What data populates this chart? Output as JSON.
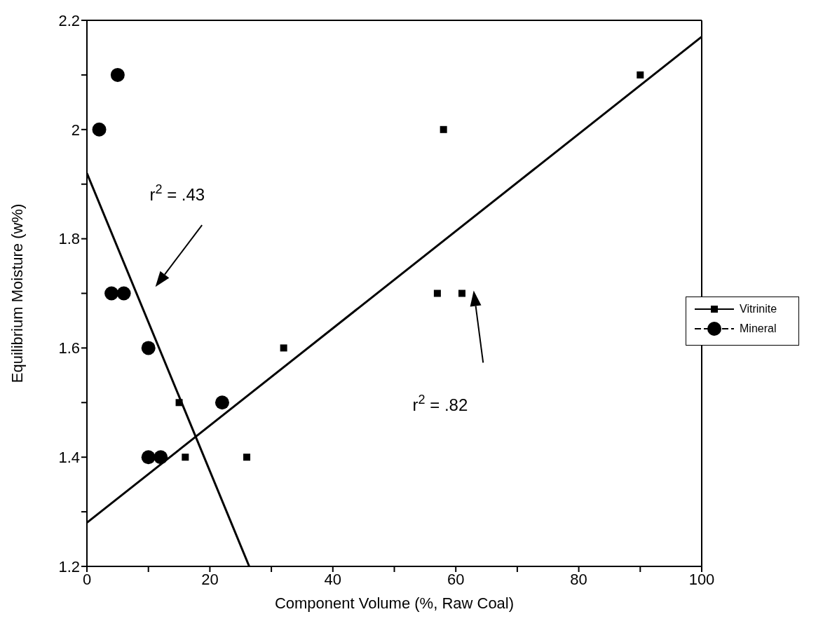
{
  "chart_data": {
    "type": "scatter",
    "xlabel": "Component Volume (%, Raw Coal)",
    "ylabel": "Equilibrium Moisture (w%)",
    "xlim": [
      0,
      100
    ],
    "xticks": [
      0,
      {
        "value": 10,
        "label": null
      },
      20,
      {
        "value": 30,
        "label": null
      },
      40,
      {
        "value": 50,
        "label": null
      },
      60,
      {
        "value": 70,
        "label": null
      },
      80,
      {
        "value": 90,
        "label": null
      },
      100
    ],
    "ylim": [
      1.2,
      2.2
    ],
    "yticks": [
      1.2,
      {
        "value": 1.3,
        "label": null
      },
      1.4,
      {
        "value": 1.5,
        "label": null
      },
      1.6,
      {
        "value": 1.7,
        "label": null
      },
      1.8,
      {
        "value": 1.9,
        "label": null
      },
      2,
      {
        "value": 2.1,
        "label": null
      },
      2.2
    ],
    "grid": false,
    "legend": "right",
    "series": [
      {
        "name": "Vitrinite",
        "color": "#000000",
        "marker": "square",
        "line_style": "solid",
        "x": [
          15,
          16,
          26,
          32,
          57,
          58,
          61,
          90
        ],
        "values": [
          1.5,
          1.4,
          1.4,
          1.6,
          1.7,
          2.0,
          1.7,
          2.1
        ]
      },
      {
        "name": "Mineral",
        "color": "#000000",
        "marker": "circle",
        "line_style": "dashed",
        "x": [
          2,
          5,
          4,
          6,
          10,
          10,
          12,
          22
        ],
        "values": [
          2.0,
          2.1,
          1.7,
          1.7,
          1.6,
          1.4,
          1.4,
          1.5
        ]
      },
      {
        "type": "line",
        "color": "#000000",
        "x": [
          0,
          100
        ],
        "values": [
          1.28,
          2.17
        ]
      },
      {
        "type": "line",
        "color": "#000000",
        "x": [
          0,
          26.4
        ],
        "values": [
          1.92,
          1.2
        ]
      }
    ],
    "annotations": [
      "r$^{2}$ = .43",
      "r$^{2}$ = .82"
    ]
  }
}
